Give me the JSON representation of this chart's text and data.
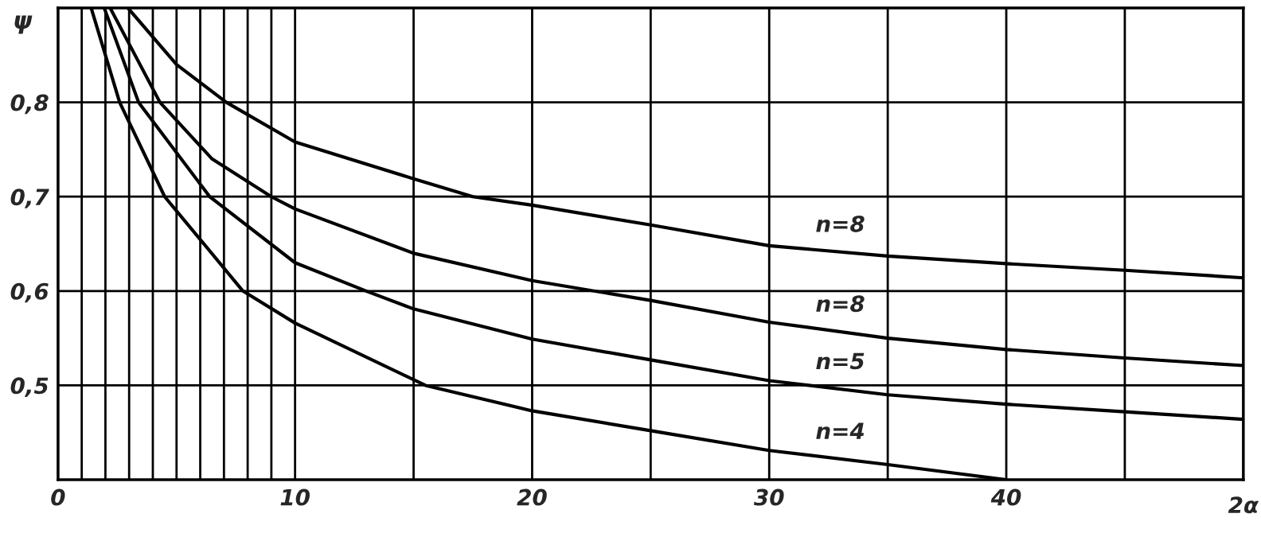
{
  "chart_data": {
    "type": "line",
    "ylabel": "ψ",
    "xlabel": "2α",
    "xlim": [
      0,
      50
    ],
    "ylim": [
      0.4,
      0.9
    ],
    "xticks": [
      0,
      {
        "value": 1,
        "label": null
      },
      {
        "value": 2,
        "label": null
      },
      {
        "value": 3,
        "label": null
      },
      {
        "value": 4,
        "label": null
      },
      {
        "value": 5,
        "label": null
      },
      {
        "value": 6,
        "label": null
      },
      {
        "value": 7,
        "label": null
      },
      {
        "value": 8,
        "label": null
      },
      {
        "value": 9,
        "label": null
      },
      10,
      {
        "value": 15,
        "label": null
      },
      20,
      {
        "value": 25,
        "label": null
      },
      30,
      {
        "value": 35,
        "label": null
      },
      40,
      {
        "value": 45,
        "label": null
      }
    ],
    "yticks": [
      {
        "value": 0.5,
        "label": "0,5"
      },
      {
        "value": 0.6,
        "label": "0,6"
      },
      {
        "value": 0.7,
        "label": "0,7"
      },
      {
        "value": 0.8,
        "label": "0,8"
      }
    ],
    "grid": true,
    "marker": "none",
    "line_style": "solid",
    "series": [
      {
        "name": "n=8",
        "color": "#000000",
        "x": [
          2.95,
          5,
          7.1,
          10,
          15,
          17.5,
          20,
          25,
          30,
          35,
          40,
          45,
          50
        ],
        "values": [
          0.9,
          0.84,
          0.8,
          0.758,
          0.719,
          0.7,
          0.691,
          0.67,
          0.648,
          0.637,
          0.629,
          0.622,
          0.614
        ]
      },
      {
        "name": "n=8",
        "color": "#000000",
        "x": [
          2.2,
          4.3,
          6.5,
          9,
          10,
          15,
          20,
          25,
          30,
          35,
          40,
          45,
          50
        ],
        "values": [
          0.9,
          0.8,
          0.74,
          0.7,
          0.687,
          0.64,
          0.611,
          0.59,
          0.567,
          0.55,
          0.538,
          0.529,
          0.521
        ]
      },
      {
        "name": "n=5",
        "color": "#000000",
        "x": [
          1.95,
          3.4,
          6.4,
          10,
          13,
          15,
          20,
          25,
          30,
          35,
          40,
          45,
          50
        ],
        "values": [
          0.9,
          0.8,
          0.7,
          0.63,
          0.6,
          0.581,
          0.549,
          0.527,
          0.505,
          0.49,
          0.48,
          0.472,
          0.464
        ]
      },
      {
        "name": "n=4",
        "color": "#000000",
        "x": [
          1.4,
          2.6,
          4.5,
          7.8,
          10,
          15.5,
          20,
          25,
          30,
          35,
          40
        ],
        "values": [
          0.9,
          0.8,
          0.7,
          0.6,
          0.566,
          0.5,
          0.473,
          0.452,
          0.431,
          0.416,
          0.4
        ]
      }
    ]
  }
}
